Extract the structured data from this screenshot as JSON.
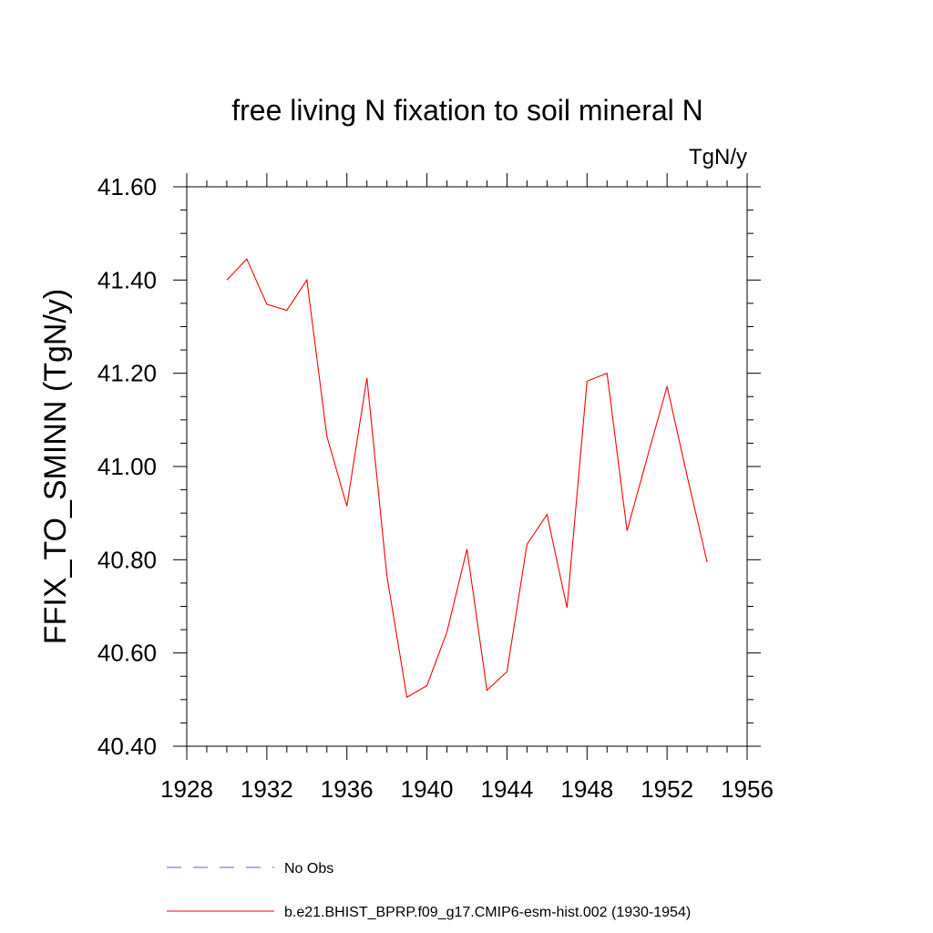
{
  "chart_data": {
    "type": "line",
    "title": "free living N fixation to soil mineral N",
    "units_label": "TgN/y",
    "ylabel": "FFIX_TO_SMINN  (TgN/y)",
    "xlabel": "",
    "xlim": [
      1928,
      1956
    ],
    "ylim": [
      40.4,
      41.6
    ],
    "x_ticks": [
      1928,
      1932,
      1936,
      1940,
      1944,
      1948,
      1952,
      1956
    ],
    "x_tick_labels": [
      "1928",
      "1932",
      "1936",
      "1940",
      "1944",
      "1948",
      "1952",
      "1956"
    ],
    "x_minor_step": 1,
    "y_ticks": [
      40.4,
      40.6,
      40.8,
      41.0,
      41.2,
      41.4,
      41.6
    ],
    "y_tick_labels": [
      "40.40",
      "40.60",
      "40.80",
      "41.00",
      "41.20",
      "41.40",
      "41.60"
    ],
    "y_minor_step": 0.05,
    "grid": false,
    "series": [
      {
        "name": "b.e21.BHIST_BPRP.f09_g17.CMIP6-esm-hist.002 (1930-1954)",
        "color": "#ff0000",
        "dash": "solid",
        "x": [
          1930,
          1931,
          1932,
          1933,
          1934,
          1935,
          1936,
          1937,
          1938,
          1939,
          1940,
          1941,
          1942,
          1943,
          1944,
          1945,
          1946,
          1947,
          1948,
          1949,
          1950,
          1951,
          1952,
          1953,
          1954
        ],
        "y": [
          41.4,
          41.445,
          41.348,
          41.335,
          41.4,
          41.065,
          40.915,
          41.19,
          40.765,
          40.505,
          40.53,
          40.645,
          40.823,
          40.52,
          40.56,
          40.833,
          40.897,
          40.697,
          41.183,
          41.2,
          40.862,
          41.018,
          41.172,
          40.98,
          40.795
        ]
      }
    ],
    "legend": {
      "placement": "bottom",
      "entries": [
        {
          "label": "No Obs",
          "color": "#6a5acd",
          "dash": "dashed"
        },
        {
          "label": "b.e21.BHIST_BPRP.f09_g17.CMIP6-esm-hist.002 (1930-1954)",
          "color": "#ff0000",
          "dash": "solid"
        }
      ]
    }
  }
}
